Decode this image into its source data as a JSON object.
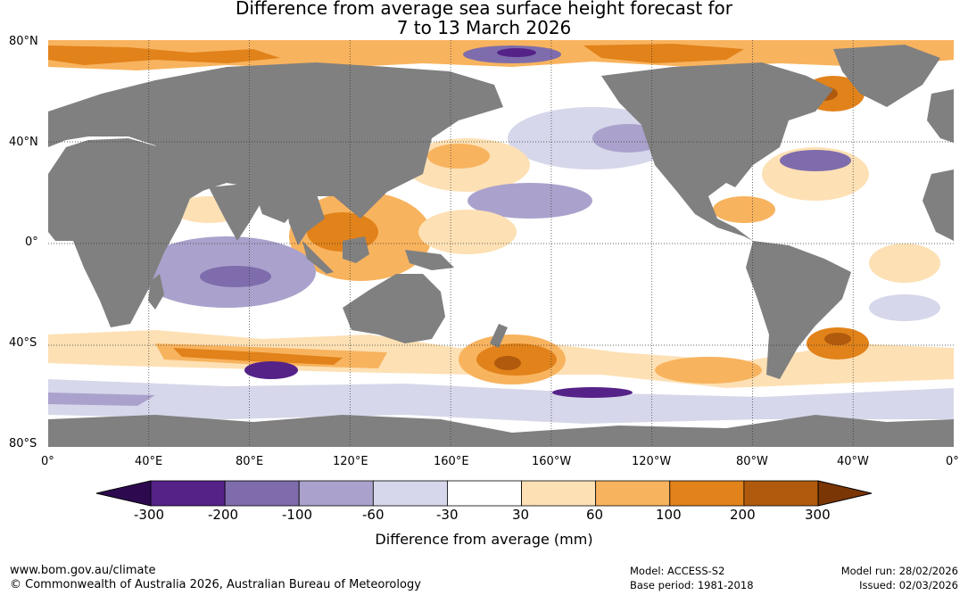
{
  "title": {
    "line1": "Difference from average sea surface height forecast for",
    "line2": "7 to 13 March 2026"
  },
  "map": {
    "lat_labels": [
      "80°N",
      "40°N",
      "0°",
      "40°S",
      "80°S"
    ],
    "lon_labels": [
      "0°",
      "40°E",
      "80°E",
      "120°E",
      "160°E",
      "160°W",
      "120°W",
      "80°W",
      "40°W",
      "0°"
    ],
    "land_color": "#808080",
    "ocean_neutral_color": "#ffffff"
  },
  "colorbar": {
    "title": "Difference from average (mm)",
    "tick_labels": [
      "-300",
      "-200",
      "-100",
      "-60",
      "-30",
      "30",
      "60",
      "100",
      "200",
      "300"
    ],
    "colors": {
      "below_min": "#2d0a50",
      "bins": [
        "#552288",
        "#7e6cac",
        "#aaa2cc",
        "#d6d7ea",
        "#ffffff",
        "#fde0b4",
        "#f8b35e",
        "#e1821a",
        "#b05a0d"
      ],
      "above_max": "#7b3606"
    }
  },
  "footer": {
    "url": "www.bom.gov.au/climate",
    "copyright": "© Commonwealth of Australia 2026, Australian Bureau of Meteorology",
    "model": "Model: ACCESS-S2",
    "base_period": "Base period: 1981-2018",
    "model_run": "Model run: 28/02/2026",
    "issued": "Issued: 02/03/2026"
  }
}
